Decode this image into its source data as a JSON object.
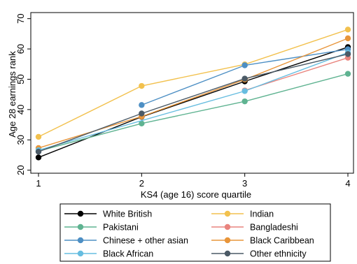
{
  "chart_data": {
    "type": "line",
    "title": "",
    "xlabel": "KS4 (age 16) score quartile",
    "ylabel": "Age 28 earnings rank",
    "x": [
      1,
      2,
      3,
      4
    ],
    "xticks": [
      "1",
      "2",
      "3",
      "4"
    ],
    "yticks": [
      "20",
      "30",
      "40",
      "50",
      "60",
      "70"
    ],
    "xlim": [
      1,
      4
    ],
    "ylim": [
      19,
      72
    ],
    "grid": false,
    "legend_position": "bottom",
    "series": [
      {
        "name": "White British",
        "color": "#000000",
        "values": [
          24.2,
          37.6,
          49.3,
          60.6
        ]
      },
      {
        "name": "Indian",
        "color": "#f2c14e",
        "values": [
          31.0,
          47.8,
          54.9,
          66.4
        ]
      },
      {
        "name": "Pakistani",
        "color": "#5fb391",
        "values": [
          26.3,
          35.4,
          42.7,
          51.8
        ]
      },
      {
        "name": "Bangladeshi",
        "color": "#e9847e",
        "values": [
          null,
          null,
          46.3,
          57.1
        ]
      },
      {
        "name": "Chinese + other asian",
        "color": "#4d8fc4",
        "values": [
          null,
          41.5,
          54.6,
          59.9
        ]
      },
      {
        "name": "Black Caribbean",
        "color": "#e8953a",
        "values": [
          27.3,
          37.7,
          49.9,
          63.5
        ]
      },
      {
        "name": "Black African",
        "color": "#67bde0",
        "values": [
          26.6,
          null,
          46.1,
          58.8
        ]
      },
      {
        "name": "Other ethnicity",
        "color": "#4b5a66",
        "values": [
          26.1,
          38.7,
          50.2,
          58.3
        ]
      }
    ]
  }
}
